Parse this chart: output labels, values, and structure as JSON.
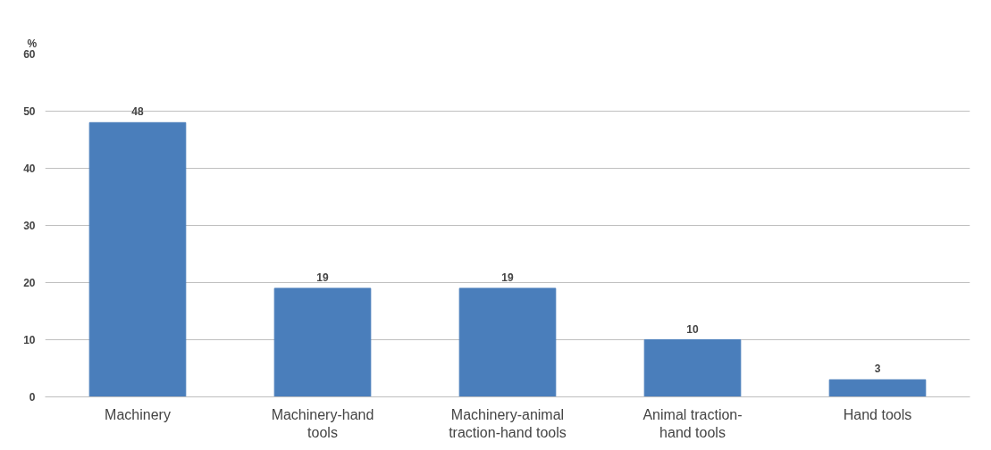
{
  "chart_data": {
    "type": "bar",
    "ylabel": "%",
    "categories": [
      "Machinery",
      "Machinery-hand tools",
      "Machinery-animal traction-hand tools",
      "Animal traction-hand tools",
      "Hand tools"
    ],
    "values": [
      48,
      19,
      19,
      10,
      3
    ],
    "color": "#4a7ebb",
    "ylim": [
      0,
      60
    ],
    "yticks": [
      0,
      10,
      20,
      30,
      40,
      50,
      60
    ],
    "grid": "y",
    "data_labels": true
  }
}
